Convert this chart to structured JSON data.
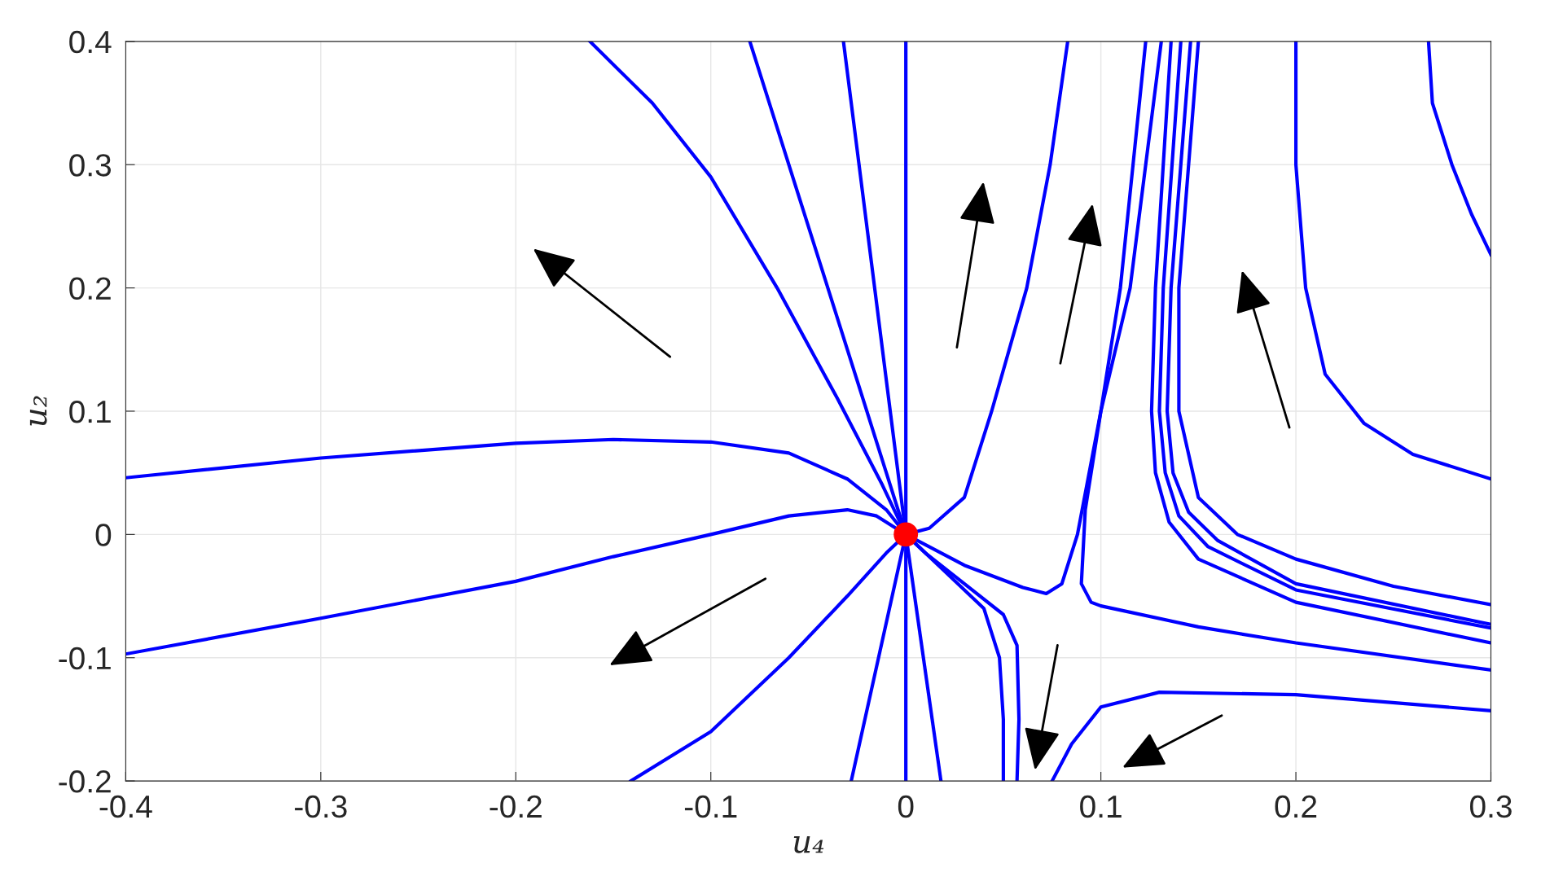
{
  "chart_data": {
    "type": "line",
    "xlabel": "u₄",
    "ylabel": "u₂",
    "xlim": [
      -0.4,
      0.3
    ],
    "ylim": [
      -0.2,
      0.4
    ],
    "xticks": [
      -0.4,
      -0.3,
      -0.2,
      -0.1,
      0,
      0.1,
      0.2,
      0.3
    ],
    "yticks": [
      -0.2,
      -0.1,
      0,
      0.1,
      0.2,
      0.3,
      0.4
    ],
    "grid": true,
    "line_style": "solid",
    "series": [
      {
        "color": "#0000ff",
        "x": [
          -0.162,
          -0.13,
          -0.1,
          -0.066,
          -0.035,
          -0.012,
          0
        ],
        "values": [
          0.4,
          0.35,
          0.29,
          0.2,
          0.11,
          0.04,
          0
        ]
      },
      {
        "color": "#0000ff",
        "x": [
          -0.08,
          -0.05,
          -0.02,
          0
        ],
        "values": [
          0.4,
          0.25,
          0.1,
          0
        ]
      },
      {
        "color": "#0000ff",
        "x": [
          -0.032,
          -0.016,
          0
        ],
        "values": [
          0.4,
          0.2,
          0
        ]
      },
      {
        "color": "#0000ff",
        "x": [
          0,
          0
        ],
        "values": [
          0.4,
          -0.2
        ]
      },
      {
        "color": "#0000ff",
        "x": [
          0,
          0.012,
          0.03,
          0.044,
          0.062,
          0.074,
          0.083
        ],
        "values": [
          0,
          0.005,
          0.03,
          0.1,
          0.2,
          0.3,
          0.4
        ]
      },
      {
        "color": "#0000ff",
        "x": [
          -0.4,
          -0.3,
          -0.2,
          -0.15,
          -0.1,
          -0.06,
          -0.03,
          -0.01,
          0
        ],
        "values": [
          0.046,
          0.062,
          0.074,
          0.077,
          0.075,
          0.066,
          0.045,
          0.02,
          0
        ]
      },
      {
        "color": "#0000ff",
        "x": [
          -0.4,
          -0.3,
          -0.2,
          -0.15,
          -0.1,
          -0.06,
          -0.03,
          -0.015,
          0
        ],
        "values": [
          -0.097,
          -0.068,
          -0.038,
          -0.018,
          0.0,
          0.015,
          0.02,
          0.015,
          0
        ]
      },
      {
        "color": "#0000ff",
        "x": [
          -0.141,
          -0.1,
          -0.06,
          -0.03,
          -0.01,
          0
        ],
        "values": [
          -0.2,
          -0.16,
          -0.1,
          -0.05,
          -0.015,
          0
        ]
      },
      {
        "color": "#0000ff",
        "x": [
          0,
          -0.028
        ],
        "values": [
          0,
          -0.2
        ]
      },
      {
        "color": "#0000ff",
        "x": [
          0,
          0.018
        ],
        "values": [
          0,
          -0.2
        ]
      },
      {
        "color": "#0000ff",
        "x": [
          0,
          0.02,
          0.04,
          0.048,
          0.05,
          0.05
        ],
        "values": [
          0,
          -0.03,
          -0.06,
          -0.1,
          -0.15,
          -0.2
        ]
      },
      {
        "color": "#0000ff",
        "x": [
          0,
          0.01,
          0.03,
          0.05,
          0.057,
          0.058,
          0.057
        ],
        "values": [
          0,
          -0.015,
          -0.04,
          -0.065,
          -0.09,
          -0.15,
          -0.2
        ]
      },
      {
        "color": "#0000ff",
        "x": [
          0,
          0.03,
          0.06,
          0.072,
          0.08,
          0.088,
          0.1,
          0.11,
          0.123
        ],
        "values": [
          0,
          -0.025,
          -0.043,
          -0.048,
          -0.04,
          0.0,
          0.1,
          0.2,
          0.4
        ]
      },
      {
        "color": "#0000ff",
        "x": [
          0.131,
          0.115,
          0.1,
          0.092,
          0.09,
          0.095,
          0.1,
          0.15,
          0.2,
          0.3
        ],
        "values": [
          0.4,
          0.2,
          0.1,
          0.02,
          -0.04,
          -0.055,
          -0.058,
          -0.075,
          -0.088,
          -0.11
        ]
      },
      {
        "color": "#0000ff",
        "x": [
          0.136,
          0.128,
          0.126,
          0.128,
          0.135,
          0.15,
          0.2,
          0.3
        ],
        "values": [
          0.4,
          0.2,
          0.1,
          0.05,
          0.01,
          -0.02,
          -0.055,
          -0.088
        ]
      },
      {
        "color": "#0000ff",
        "x": [
          0.141,
          0.132,
          0.13,
          0.133,
          0.14,
          0.155,
          0.2,
          0.3
        ],
        "values": [
          0.4,
          0.2,
          0.1,
          0.05,
          0.015,
          -0.01,
          -0.045,
          -0.076
        ]
      },
      {
        "color": "#0000ff",
        "x": [
          0.146,
          0.136,
          0.134,
          0.137,
          0.145,
          0.16,
          0.2,
          0.3
        ],
        "values": [
          0.4,
          0.2,
          0.1,
          0.05,
          0.018,
          -0.005,
          -0.04,
          -0.073
        ]
      },
      {
        "color": "#0000ff",
        "x": [
          0.15,
          0.14,
          0.14,
          0.15,
          0.17,
          0.2,
          0.25,
          0.3
        ],
        "values": [
          0.4,
          0.2,
          0.1,
          0.03,
          0.0,
          -0.02,
          -0.042,
          -0.057
        ]
      },
      {
        "color": "#0000ff",
        "x": [
          0.075,
          0.085,
          0.1,
          0.13,
          0.2,
          0.3
        ],
        "values": [
          -0.2,
          -0.17,
          -0.14,
          -0.128,
          -0.13,
          -0.143
        ]
      },
      {
        "color": "#0000ff",
        "x": [
          0.2,
          0.2,
          0.205,
          0.215,
          0.235,
          0.26,
          0.3
        ],
        "values": [
          0.4,
          0.3,
          0.2,
          0.13,
          0.09,
          0.065,
          0.045
        ]
      },
      {
        "color": "#0000ff",
        "x": [
          0.268,
          0.27,
          0.28,
          0.29,
          0.3
        ],
        "values": [
          0.4,
          0.35,
          0.3,
          0.26,
          0.227
        ]
      },
      {
        "type": "scatter",
        "marker": "circle",
        "color": "#ff0000",
        "x": [
          0
        ],
        "values": [
          0
        ]
      }
    ]
  }
}
